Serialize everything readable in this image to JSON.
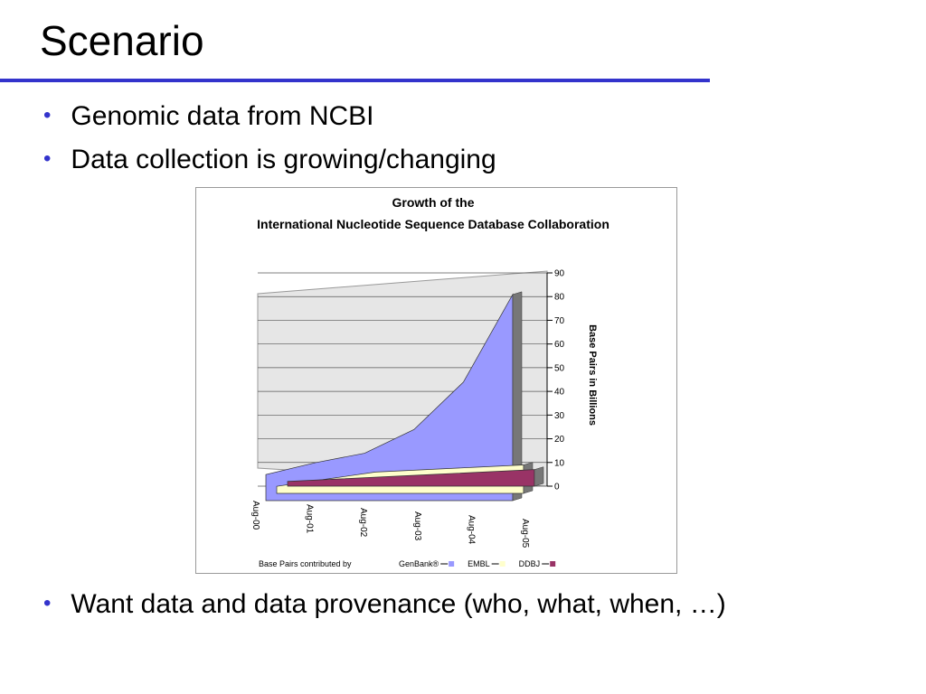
{
  "title": "Scenario",
  "bullets": [
    "Genomic data from NCBI",
    "Data collection is growing/changing",
    "Want data and data provenance (who, what, when, …)"
  ],
  "chart_data": {
    "type": "area",
    "title": [
      "Growth of the",
      "International Nucleotide Sequence Database Collaboration"
    ],
    "y_label": "Base Pairs in Billions",
    "legend_title": "Base Pairs contributed by",
    "categories": [
      "Aug-00",
      "Aug-01",
      "Aug-02",
      "Aug-03",
      "Aug-04",
      "Aug-05"
    ],
    "series": [
      {
        "name": "GenBank®",
        "color": "#9999ff",
        "values": [
          11,
          16,
          20,
          30,
          50,
          87
        ]
      },
      {
        "name": "EMBL",
        "color": "#ffffcc",
        "values": [
          3,
          6,
          9,
          10,
          11,
          12
        ]
      },
      {
        "name": "DDBJ",
        "color": "#993366",
        "values": [
          2,
          3,
          4,
          5,
          6,
          7
        ]
      }
    ],
    "ylim": [
      0,
      90
    ],
    "yticks": [
      0,
      10,
      20,
      30,
      40,
      50,
      60,
      70,
      80,
      90
    ],
    "grid": true
  }
}
